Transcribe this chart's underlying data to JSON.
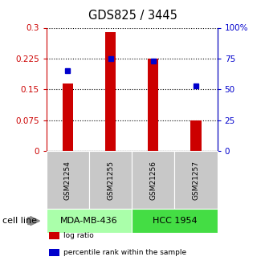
{
  "title": "GDS825 / 3445",
  "samples": [
    "GSM21254",
    "GSM21255",
    "GSM21256",
    "GSM21257"
  ],
  "log_ratios": [
    0.165,
    0.29,
    0.225,
    0.075
  ],
  "percentile_ranks": [
    0.65,
    0.75,
    0.73,
    0.53
  ],
  "cell_lines": [
    {
      "name": "MDA-MB-436",
      "samples": [
        0,
        1
      ],
      "color": "#aaffaa"
    },
    {
      "name": "HCC 1954",
      "samples": [
        2,
        3
      ],
      "color": "#44dd44"
    }
  ],
  "ylim_left": [
    0,
    0.3
  ],
  "ylim_right": [
    0,
    1.0
  ],
  "yticks_left": [
    0,
    0.075,
    0.15,
    0.225,
    0.3
  ],
  "ytick_labels_left": [
    "0",
    "0.075",
    "0.15",
    "0.225",
    "0.3"
  ],
  "yticks_right": [
    0,
    0.25,
    0.5,
    0.75,
    1.0
  ],
  "ytick_labels_right": [
    "0",
    "25",
    "50",
    "75",
    "100%"
  ],
  "bar_color": "#cc0000",
  "dot_color": "#0000cc",
  "bar_width": 0.25,
  "sample_box_color": "#c8c8c8",
  "cell_line_label": "cell line",
  "legend_items": [
    {
      "label": "log ratio",
      "color": "#cc0000"
    },
    {
      "label": "percentile rank within the sample",
      "color": "#0000cc"
    }
  ]
}
